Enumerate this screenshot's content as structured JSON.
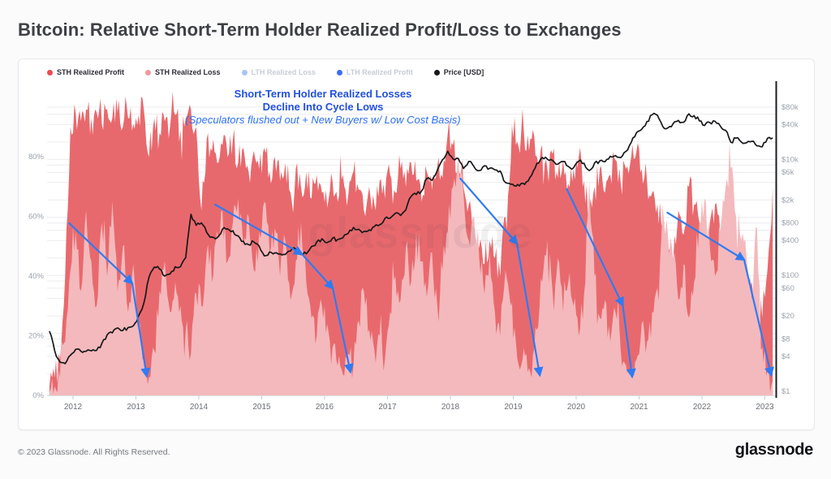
{
  "title": "Bitcoin: Relative Short-Term Holder Realized Profit/Loss to Exchanges",
  "watermark": "glassnode",
  "legend": {
    "items": [
      {
        "label": "STH Realized Profit",
        "color": "#ee4a50",
        "active": true
      },
      {
        "label": "STH Realized Loss",
        "color": "#f4989d",
        "active": true
      },
      {
        "label": "LTH Realized Loss",
        "color": "#a9c4f7",
        "active": false
      },
      {
        "label": "LTH Realized Profit",
        "color": "#3d6ef0",
        "active": false
      },
      {
        "label": "Price [USD]",
        "color": "#17181a",
        "active": true
      }
    ]
  },
  "annotation": {
    "line1": "Short-Term Holder Realized Losses",
    "line2": "Decline Into Cycle Lows",
    "line3": "(Speculators flushed out + New Buyers w/ Low Cost Basis)",
    "color_bold": "#2250e0",
    "color_italic": "#2e6ff2"
  },
  "footer": {
    "copyright": "© 2023 Glassnode. All Rights Reserved.",
    "logo": "glassnode"
  },
  "colors": {
    "profit_area": "#e8696d",
    "loss_area": "#f4b9bc",
    "price_line": "#17181a",
    "arrow_blue": "#2e7bf4",
    "gridline": "#ececef",
    "right_axis_line": "#1b1c1f"
  },
  "chart_data": {
    "type": "area",
    "title": "Bitcoin: Relative Short-Term Holder Realized Profit/Loss to Exchanges",
    "x_time": {
      "start_month": "2011-08",
      "end_month": "2023-02",
      "start_year_frac": 2011.625,
      "step_years": 0.0833333,
      "count": 139
    },
    "x_axis": {
      "labels": [
        "2012",
        "2013",
        "2014",
        "2015",
        "2016",
        "2017",
        "2018",
        "2019",
        "2020",
        "2021",
        "2022",
        "2023"
      ],
      "label_values": [
        2012,
        2013,
        2014,
        2015,
        2016,
        2017,
        2018,
        2019,
        2020,
        2021,
        2022,
        2023
      ]
    },
    "left_axis": {
      "unit": "%",
      "ticks": [
        "0%",
        "20%",
        "40%",
        "60%",
        "80%"
      ],
      "tick_values": [
        0,
        20,
        40,
        60,
        80
      ],
      "range": [
        0,
        105
      ]
    },
    "right_axis": {
      "unit": "USD",
      "scale": "log",
      "labels": [
        "$80k",
        "$40k",
        "$10k",
        "$6k",
        "$2k",
        "$800",
        "$400",
        "$100",
        "$60",
        "$20",
        "$8",
        "$4",
        "$1"
      ],
      "label_values": [
        80000,
        40000,
        10000,
        6000,
        2000,
        800,
        400,
        100,
        60,
        20,
        8,
        4,
        1
      ],
      "gridline_values": [
        1,
        2,
        4,
        6,
        8,
        10,
        20,
        40,
        60,
        80,
        100,
        200,
        400,
        600,
        800,
        1000,
        2000,
        4000,
        6000,
        8000,
        10000,
        20000,
        40000,
        60000,
        80000
      ],
      "range": [
        1,
        100000
      ]
    },
    "series": [
      {
        "name": "STH Realized Profit",
        "unit": "%",
        "axis": "left",
        "color": "#e8696d",
        "values": [
          3,
          6,
          12,
          40,
          90,
          95,
          92,
          96,
          93,
          95,
          91,
          96,
          93,
          95,
          90,
          93,
          91,
          94,
          96,
          80,
          93,
          88,
          92,
          90,
          94,
          89,
          93,
          96,
          90,
          62,
          86,
          82,
          78,
          84,
          80,
          86,
          78,
          83,
          75,
          82,
          76,
          83,
          75,
          80,
          72,
          78,
          68,
          76,
          70,
          75,
          66,
          74,
          68,
          63,
          72,
          65,
          74,
          67,
          75,
          69,
          62,
          70,
          64,
          72,
          66,
          74,
          68,
          76,
          70,
          78,
          72,
          65,
          75,
          69,
          77,
          73,
          88,
          84,
          76,
          70,
          64,
          57,
          50,
          44,
          52,
          46,
          40,
          60,
          78,
          84,
          88,
          82,
          86,
          80,
          84,
          76,
          81,
          73,
          79,
          71,
          76,
          80,
          72,
          62,
          70,
          76,
          68,
          74,
          79,
          71,
          76,
          80,
          82,
          76,
          72,
          68,
          64,
          56,
          50,
          44,
          62,
          54,
          70,
          64,
          58,
          52,
          58,
          64,
          54,
          46,
          38,
          48,
          42,
          34,
          38,
          30,
          26,
          42,
          70
        ]
      },
      {
        "name": "STH Realized Loss",
        "unit": "%",
        "axis": "left",
        "color": "#f4b9bc",
        "values": [
          1,
          3,
          6,
          18,
          42,
          55,
          35,
          62,
          45,
          30,
          58,
          40,
          65,
          35,
          50,
          28,
          44,
          22,
          12,
          6,
          15,
          35,
          45,
          28,
          38,
          30,
          22,
          14,
          34,
          30,
          48,
          38,
          55,
          62,
          45,
          58,
          66,
          50,
          60,
          42,
          55,
          65,
          48,
          56,
          40,
          52,
          32,
          45,
          58,
          38,
          26,
          20,
          30,
          24,
          16,
          10,
          7,
          14,
          10,
          25,
          35,
          22,
          15,
          20,
          12,
          28,
          40,
          32,
          50,
          38,
          55,
          45,
          33,
          48,
          30,
          42,
          55,
          70,
          80,
          68,
          52,
          60,
          46,
          34,
          48,
          28,
          20,
          42,
          30,
          18,
          10,
          14,
          6,
          22,
          38,
          52,
          35,
          46,
          28,
          38,
          30,
          20,
          34,
          72,
          40,
          26,
          32,
          18,
          28,
          15,
          10,
          6,
          12,
          24,
          18,
          28,
          36,
          64,
          54,
          46,
          32,
          44,
          26,
          38,
          58,
          66,
          50,
          40,
          55,
          70,
          76,
          60,
          52,
          46,
          32,
          56,
          16,
          8,
          5
        ]
      },
      {
        "name": "Price [USD]",
        "unit": "USD",
        "axis": "right",
        "scale": "log",
        "color": "#17181a",
        "values": [
          10.9,
          5.0,
          3.2,
          3.0,
          4.2,
          5.3,
          4.9,
          4.9,
          5.0,
          5.1,
          6.7,
          9.4,
          10.2,
          12.4,
          11.2,
          12.6,
          13.5,
          20,
          33,
          93,
          139,
          128,
          97,
          106,
          141,
          141,
          204,
          1130,
          732,
          806,
          550,
          458,
          446,
          627,
          635,
          589,
          481,
          387,
          338,
          378,
          320,
          217,
          254,
          244,
          236,
          230,
          263,
          284,
          230,
          236,
          314,
          377,
          430,
          368,
          437,
          416,
          448,
          531,
          673,
          624,
          573,
          609,
          700,
          745,
          963,
          970,
          1180,
          1080,
          1350,
          2300,
          2480,
          2875,
          4703,
          4360,
          6468,
          9916,
          13850,
          10221,
          10397,
          6973,
          9240,
          7494,
          6404,
          7780,
          7037,
          6625,
          6317,
          4017,
          3742,
          3457,
          3854,
          4105,
          5350,
          8574,
          10817,
          10085,
          9630,
          8293,
          9199,
          7569,
          7193,
          9350,
          8599,
          6438,
          8658,
          9461,
          9137,
          11323,
          11680,
          10784,
          13781,
          19625,
          28994,
          33114,
          45137,
          58918,
          57750,
          37332,
          35040,
          41626,
          47166,
          43790,
          61318,
          57005,
          46306,
          38483,
          43193,
          45538,
          37714,
          31792,
          19784,
          23336,
          20049,
          19426,
          20495,
          17168,
          16547,
          23139,
          23500
        ]
      }
    ],
    "arrows": [
      {
        "points_year_pct": [
          [
            2011.94,
            57.7
          ],
          [
            2012.94,
            37.6
          ],
          [
            2013.17,
            6.5
          ]
        ]
      },
      {
        "points_year_pct": [
          [
            2014.26,
            64.0
          ],
          [
            2015.64,
            47.4
          ],
          [
            2016.13,
            35.9
          ],
          [
            2016.41,
            7.9
          ]
        ]
      },
      {
        "points_year_pct": [
          [
            2018.16,
            72.7
          ],
          [
            2019.06,
            50.9
          ],
          [
            2019.42,
            6.8
          ]
        ]
      },
      {
        "points_year_pct": [
          [
            2019.85,
            69.2
          ],
          [
            2020.74,
            30.2
          ],
          [
            2020.89,
            6.3
          ]
        ]
      },
      {
        "points_year_pct": [
          [
            2021.45,
            61.3
          ],
          [
            2022.67,
            45.5
          ],
          [
            2023.1,
            6.8
          ]
        ]
      }
    ],
    "legend_position": "top-left",
    "grid": "horizontal-faint"
  }
}
